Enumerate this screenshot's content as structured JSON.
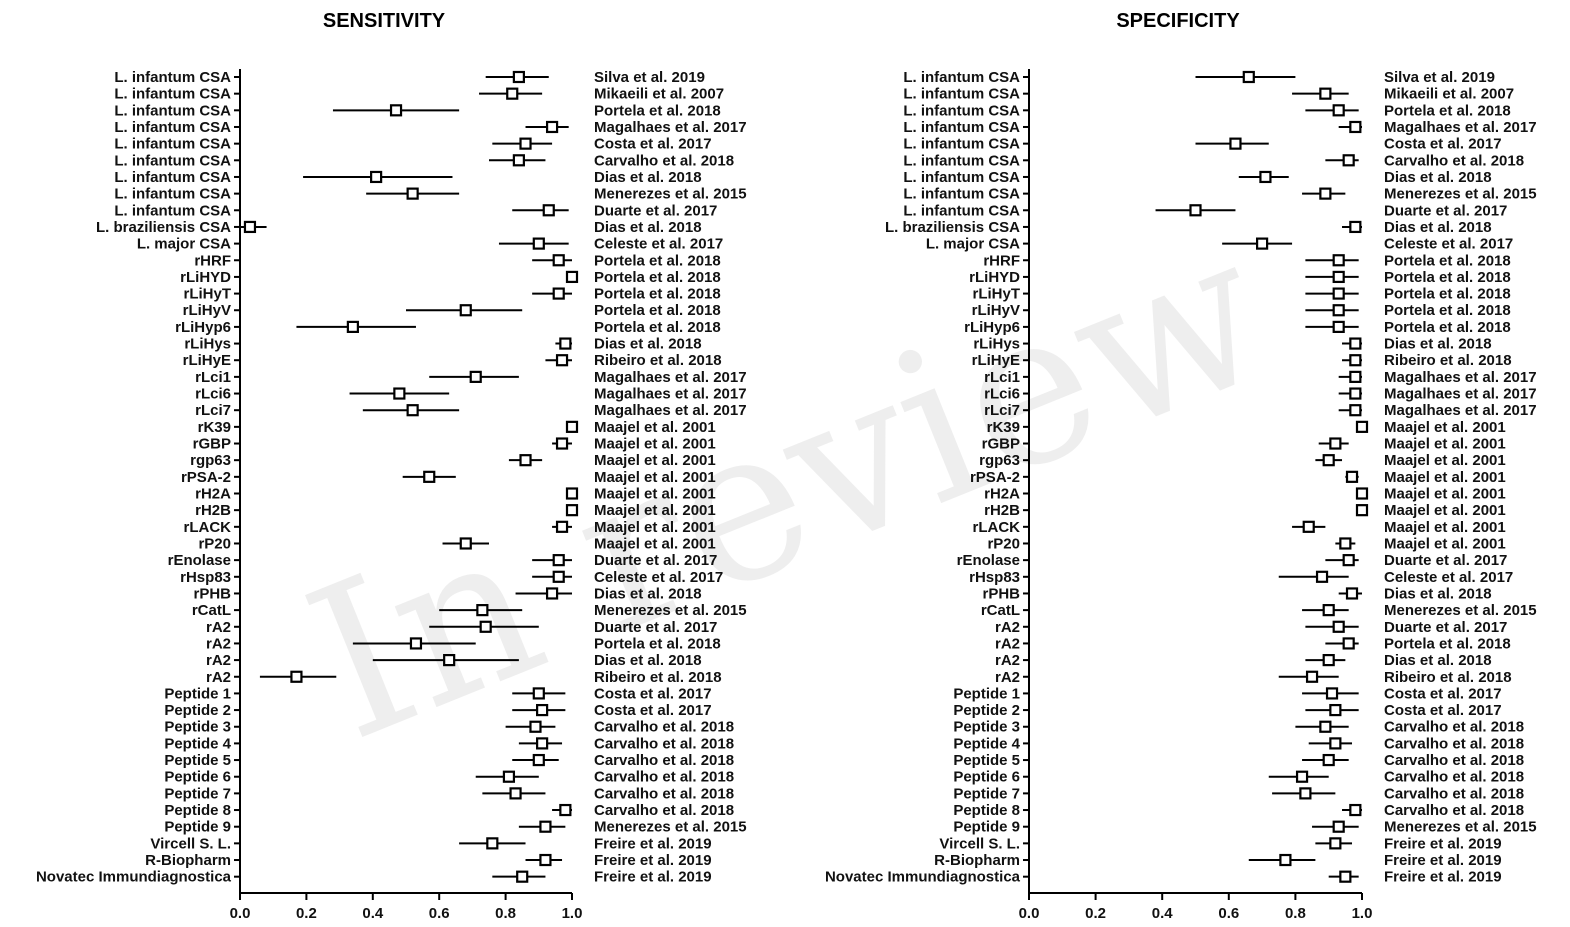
{
  "watermark": "In review",
  "chart_data": [
    {
      "type": "forest",
      "title": "SENSITIVITY",
      "xlim": [
        0,
        1
      ],
      "xticks": [
        "0.0",
        "0.2",
        "0.4",
        "0.6",
        "0.8",
        "1.0"
      ],
      "rows": [
        {
          "label": "L. infantum CSA",
          "study": "Silva et al. 2019",
          "est": 0.84,
          "lo": 0.74,
          "hi": 0.93
        },
        {
          "label": "L. infantum CSA",
          "study": "Mikaeili et al. 2007",
          "est": 0.82,
          "lo": 0.72,
          "hi": 0.91
        },
        {
          "label": "L. infantum CSA",
          "study": "Portela et al. 2018",
          "est": 0.47,
          "lo": 0.28,
          "hi": 0.66
        },
        {
          "label": "L. infantum CSA",
          "study": "Magalhaes et al. 2017",
          "est": 0.94,
          "lo": 0.86,
          "hi": 0.99
        },
        {
          "label": "L. infantum CSA",
          "study": "Costa et al. 2017",
          "est": 0.86,
          "lo": 0.76,
          "hi": 0.94
        },
        {
          "label": "L. infantum CSA",
          "study": "Carvalho et al. 2018",
          "est": 0.84,
          "lo": 0.75,
          "hi": 0.92
        },
        {
          "label": "L. infantum CSA",
          "study": "Dias et al. 2018",
          "est": 0.41,
          "lo": 0.19,
          "hi": 0.64
        },
        {
          "label": "L. infantum CSA",
          "study": "Menerezes et al. 2015",
          "est": 0.52,
          "lo": 0.38,
          "hi": 0.66
        },
        {
          "label": "L. infantum CSA",
          "study": "Duarte et al. 2017",
          "est": 0.93,
          "lo": 0.82,
          "hi": 0.99
        },
        {
          "label": "L. braziliensis CSA",
          "study": "Dias et al. 2018",
          "est": 0.03,
          "lo": 0.0,
          "hi": 0.08
        },
        {
          "label": "L. major CSA",
          "study": "Celeste et al. 2017",
          "est": 0.9,
          "lo": 0.78,
          "hi": 0.99
        },
        {
          "label": "rHRF",
          "study": "Portela et al. 2018",
          "est": 0.96,
          "lo": 0.88,
          "hi": 1.0
        },
        {
          "label": "rLiHYD",
          "study": "Portela et al. 2018",
          "est": 1.0,
          "lo": 1.0,
          "hi": 1.0
        },
        {
          "label": "rLiHyT",
          "study": "Portela et al. 2018",
          "est": 0.96,
          "lo": 0.88,
          "hi": 1.0
        },
        {
          "label": "rLiHyV",
          "study": "Portela et al. 2018",
          "est": 0.68,
          "lo": 0.5,
          "hi": 0.85
        },
        {
          "label": "rLiHyp6",
          "study": "Portela et al. 2018",
          "est": 0.34,
          "lo": 0.17,
          "hi": 0.53
        },
        {
          "label": "rLiHys",
          "study": "Dias et al. 2018",
          "est": 0.98,
          "lo": 0.95,
          "hi": 1.0
        },
        {
          "label": "rLiHyE",
          "study": "Ribeiro et al. 2018",
          "est": 0.97,
          "lo": 0.92,
          "hi": 1.0
        },
        {
          "label": "rLci1",
          "study": "Magalhaes et al. 2017",
          "est": 0.71,
          "lo": 0.57,
          "hi": 0.84
        },
        {
          "label": "rLci6",
          "study": "Magalhaes et al. 2017",
          "est": 0.48,
          "lo": 0.33,
          "hi": 0.63
        },
        {
          "label": "rLci7",
          "study": "Magalhaes et al. 2017",
          "est": 0.52,
          "lo": 0.37,
          "hi": 0.66
        },
        {
          "label": "rK39",
          "study": "Maajel et al. 2001",
          "est": 1.0,
          "lo": 1.0,
          "hi": 1.0
        },
        {
          "label": "rGBP",
          "study": "Maajel et al. 2001",
          "est": 0.97,
          "lo": 0.94,
          "hi": 1.0
        },
        {
          "label": "rgp63",
          "study": "Maajel et al. 2001",
          "est": 0.86,
          "lo": 0.81,
          "hi": 0.91
        },
        {
          "label": "rPSA-2",
          "study": "Maajel et al. 2001",
          "est": 0.57,
          "lo": 0.49,
          "hi": 0.65
        },
        {
          "label": "rH2A",
          "study": "Maajel et al. 2001",
          "est": 1.0,
          "lo": 1.0,
          "hi": 1.0
        },
        {
          "label": "rH2B",
          "study": "Maajel et al. 2001",
          "est": 1.0,
          "lo": 1.0,
          "hi": 1.0
        },
        {
          "label": "rLACK",
          "study": "Maajel et al. 2001",
          "est": 0.97,
          "lo": 0.94,
          "hi": 1.0
        },
        {
          "label": "rP20",
          "study": "Maajel et al. 2001",
          "est": 0.68,
          "lo": 0.61,
          "hi": 0.75
        },
        {
          "label": "rEnolase",
          "study": "Duarte et al. 2017",
          "est": 0.96,
          "lo": 0.88,
          "hi": 1.0
        },
        {
          "label": "rHsp83",
          "study": "Celeste et al. 2017",
          "est": 0.96,
          "lo": 0.88,
          "hi": 1.0
        },
        {
          "label": "rPHB",
          "study": "Dias et al. 2018",
          "est": 0.94,
          "lo": 0.83,
          "hi": 1.0
        },
        {
          "label": "rCatL",
          "study": "Menerezes et al. 2015",
          "est": 0.73,
          "lo": 0.6,
          "hi": 0.85
        },
        {
          "label": "rA2",
          "study": "Duarte et al. 2017",
          "est": 0.74,
          "lo": 0.57,
          "hi": 0.9
        },
        {
          "label": "rA2",
          "study": "Portela et al. 2018",
          "est": 0.53,
          "lo": 0.34,
          "hi": 0.71
        },
        {
          "label": "rA2",
          "study": "Dias et al. 2018",
          "est": 0.63,
          "lo": 0.4,
          "hi": 0.84
        },
        {
          "label": "rA2",
          "study": "Ribeiro et al. 2018",
          "est": 0.17,
          "lo": 0.06,
          "hi": 0.29
        },
        {
          "label": "Peptide 1",
          "study": "Costa et al. 2017",
          "est": 0.9,
          "lo": 0.82,
          "hi": 0.98
        },
        {
          "label": "Peptide 2",
          "study": "Costa et al. 2017",
          "est": 0.91,
          "lo": 0.82,
          "hi": 0.98
        },
        {
          "label": "Peptide 3",
          "study": "Carvalho et al. 2018",
          "est": 0.89,
          "lo": 0.8,
          "hi": 0.95
        },
        {
          "label": "Peptide 4",
          "study": "Carvalho et al. 2018",
          "est": 0.91,
          "lo": 0.84,
          "hi": 0.97
        },
        {
          "label": "Peptide 5",
          "study": "Carvalho et al. 2018",
          "est": 0.9,
          "lo": 0.82,
          "hi": 0.96
        },
        {
          "label": "Peptide 6",
          "study": "Carvalho et al. 2018",
          "est": 0.81,
          "lo": 0.71,
          "hi": 0.9
        },
        {
          "label": "Peptide 7",
          "study": "Carvalho et al. 2018",
          "est": 0.83,
          "lo": 0.73,
          "hi": 0.92
        },
        {
          "label": "Peptide 8",
          "study": "Carvalho et al. 2018",
          "est": 0.98,
          "lo": 0.94,
          "hi": 1.0
        },
        {
          "label": "Peptide 9",
          "study": "Menerezes et al. 2015",
          "est": 0.92,
          "lo": 0.84,
          "hi": 0.98
        },
        {
          "label": "Vircell S. L.",
          "study": "Freire et al. 2019",
          "est": 0.76,
          "lo": 0.66,
          "hi": 0.86
        },
        {
          "label": "R-Biopharm",
          "study": "Freire et al. 2019",
          "est": 0.92,
          "lo": 0.86,
          "hi": 0.97
        },
        {
          "label": "Novatec Immundiagnostica",
          "study": "Freire et al. 2019",
          "est": 0.85,
          "lo": 0.76,
          "hi": 0.92
        }
      ]
    },
    {
      "type": "forest",
      "title": "SPECIFICITY",
      "xlim": [
        0,
        1
      ],
      "xticks": [
        "0.0",
        "0.2",
        "0.4",
        "0.6",
        "0.8",
        "1.0"
      ],
      "rows": [
        {
          "label": "L. infantum CSA",
          "study": "Silva et al. 2019",
          "est": 0.66,
          "lo": 0.5,
          "hi": 0.8
        },
        {
          "label": "L. infantum CSA",
          "study": "Mikaeili et al. 2007",
          "est": 0.89,
          "lo": 0.79,
          "hi": 0.96
        },
        {
          "label": "L. infantum CSA",
          "study": "Portela et al. 2018",
          "est": 0.93,
          "lo": 0.83,
          "hi": 0.99
        },
        {
          "label": "L. infantum CSA",
          "study": "Magalhaes et al. 2017",
          "est": 0.98,
          "lo": 0.93,
          "hi": 1.0
        },
        {
          "label": "L. infantum CSA",
          "study": "Costa et al. 2017",
          "est": 0.62,
          "lo": 0.5,
          "hi": 0.72
        },
        {
          "label": "L. infantum CSA",
          "study": "Carvalho et al. 2018",
          "est": 0.96,
          "lo": 0.89,
          "hi": 0.99
        },
        {
          "label": "L. infantum CSA",
          "study": "Dias et al. 2018",
          "est": 0.71,
          "lo": 0.63,
          "hi": 0.78
        },
        {
          "label": "L. infantum CSA",
          "study": "Menerezes et al. 2015",
          "est": 0.89,
          "lo": 0.82,
          "hi": 0.95
        },
        {
          "label": "L. infantum CSA",
          "study": "Duarte et al. 2017",
          "est": 0.5,
          "lo": 0.38,
          "hi": 0.62
        },
        {
          "label": "L. braziliensis CSA",
          "study": "Dias et al. 2018",
          "est": 0.98,
          "lo": 0.94,
          "hi": 1.0
        },
        {
          "label": "L. major CSA",
          "study": "Celeste et al. 2017",
          "est": 0.7,
          "lo": 0.58,
          "hi": 0.79
        },
        {
          "label": "rHRF",
          "study": "Portela et al. 2018",
          "est": 0.93,
          "lo": 0.83,
          "hi": 0.99
        },
        {
          "label": "rLiHYD",
          "study": "Portela et al. 2018",
          "est": 0.93,
          "lo": 0.83,
          "hi": 0.99
        },
        {
          "label": "rLiHyT",
          "study": "Portela et al. 2018",
          "est": 0.93,
          "lo": 0.83,
          "hi": 0.99
        },
        {
          "label": "rLiHyV",
          "study": "Portela et al. 2018",
          "est": 0.93,
          "lo": 0.83,
          "hi": 0.99
        },
        {
          "label": "rLiHyp6",
          "study": "Portela et al. 2018",
          "est": 0.93,
          "lo": 0.83,
          "hi": 0.99
        },
        {
          "label": "rLiHys",
          "study": "Dias et al. 2018",
          "est": 0.98,
          "lo": 0.94,
          "hi": 1.0
        },
        {
          "label": "rLiHyE",
          "study": "Ribeiro et al. 2018",
          "est": 0.98,
          "lo": 0.94,
          "hi": 1.0
        },
        {
          "label": "rLci1",
          "study": "Magalhaes et al. 2017",
          "est": 0.98,
          "lo": 0.93,
          "hi": 1.0
        },
        {
          "label": "rLci6",
          "study": "Magalhaes et al. 2017",
          "est": 0.98,
          "lo": 0.93,
          "hi": 1.0
        },
        {
          "label": "rLci7",
          "study": "Magalhaes et al. 2017",
          "est": 0.98,
          "lo": 0.93,
          "hi": 1.0
        },
        {
          "label": "rK39",
          "study": "Maajel et al. 2001",
          "est": 1.0,
          "lo": 1.0,
          "hi": 1.0
        },
        {
          "label": "rGBP",
          "study": "Maajel et al. 2001",
          "est": 0.92,
          "lo": 0.87,
          "hi": 0.96
        },
        {
          "label": "rgp63",
          "study": "Maajel et al. 2001",
          "est": 0.9,
          "lo": 0.86,
          "hi": 0.94
        },
        {
          "label": "rPSA-2",
          "study": "Maajel et al. 2001",
          "est": 0.97,
          "lo": 0.95,
          "hi": 0.99
        },
        {
          "label": "rH2A",
          "study": "Maajel et al. 2001",
          "est": 1.0,
          "lo": 1.0,
          "hi": 1.0
        },
        {
          "label": "rH2B",
          "study": "Maajel et al. 2001",
          "est": 1.0,
          "lo": 1.0,
          "hi": 1.0
        },
        {
          "label": "rLACK",
          "study": "Maajel et al. 2001",
          "est": 0.84,
          "lo": 0.79,
          "hi": 0.89
        },
        {
          "label": "rP20",
          "study": "Maajel et al. 2001",
          "est": 0.95,
          "lo": 0.92,
          "hi": 0.98
        },
        {
          "label": "rEnolase",
          "study": "Duarte et al. 2017",
          "est": 0.96,
          "lo": 0.89,
          "hi": 0.99
        },
        {
          "label": "rHsp83",
          "study": "Celeste et al. 2017",
          "est": 0.88,
          "lo": 0.75,
          "hi": 0.96
        },
        {
          "label": "rPHB",
          "study": "Dias et al. 2018",
          "est": 0.97,
          "lo": 0.93,
          "hi": 1.0
        },
        {
          "label": "rCatL",
          "study": "Menerezes et al. 2015",
          "est": 0.9,
          "lo": 0.82,
          "hi": 0.96
        },
        {
          "label": "rA2",
          "study": "Duarte et al. 2017",
          "est": 0.93,
          "lo": 0.83,
          "hi": 0.99
        },
        {
          "label": "rA2",
          "study": "Portela et al. 2018",
          "est": 0.96,
          "lo": 0.89,
          "hi": 0.99
        },
        {
          "label": "rA2",
          "study": "Dias et al. 2018",
          "est": 0.9,
          "lo": 0.83,
          "hi": 0.95
        },
        {
          "label": "rA2",
          "study": "Ribeiro et al. 2018",
          "est": 0.85,
          "lo": 0.75,
          "hi": 0.93
        },
        {
          "label": "Peptide 1",
          "study": "Costa et al. 2017",
          "est": 0.91,
          "lo": 0.82,
          "hi": 0.99
        },
        {
          "label": "Peptide 2",
          "study": "Costa et al. 2017",
          "est": 0.92,
          "lo": 0.83,
          "hi": 0.99
        },
        {
          "label": "Peptide 3",
          "study": "Carvalho et al. 2018",
          "est": 0.89,
          "lo": 0.8,
          "hi": 0.96
        },
        {
          "label": "Peptide 4",
          "study": "Carvalho et al. 2018",
          "est": 0.92,
          "lo": 0.84,
          "hi": 0.97
        },
        {
          "label": "Peptide 5",
          "study": "Carvalho et al. 2018",
          "est": 0.9,
          "lo": 0.82,
          "hi": 0.96
        },
        {
          "label": "Peptide 6",
          "study": "Carvalho et al. 2018",
          "est": 0.82,
          "lo": 0.72,
          "hi": 0.9
        },
        {
          "label": "Peptide 7",
          "study": "Carvalho et al. 2018",
          "est": 0.83,
          "lo": 0.73,
          "hi": 0.92
        },
        {
          "label": "Peptide 8",
          "study": "Carvalho et al. 2018",
          "est": 0.98,
          "lo": 0.94,
          "hi": 1.0
        },
        {
          "label": "Peptide 9",
          "study": "Menerezes et al. 2015",
          "est": 0.93,
          "lo": 0.85,
          "hi": 0.99
        },
        {
          "label": "Vircell S. L.",
          "study": "Freire et al. 2019",
          "est": 0.92,
          "lo": 0.86,
          "hi": 0.97
        },
        {
          "label": "R-Biopharm",
          "study": "Freire et al. 2019",
          "est": 0.77,
          "lo": 0.66,
          "hi": 0.86
        },
        {
          "label": "Novatec Immundiagnostica",
          "study": "Freire et al. 2019",
          "est": 0.95,
          "lo": 0.9,
          "hi": 0.99
        }
      ]
    }
  ]
}
